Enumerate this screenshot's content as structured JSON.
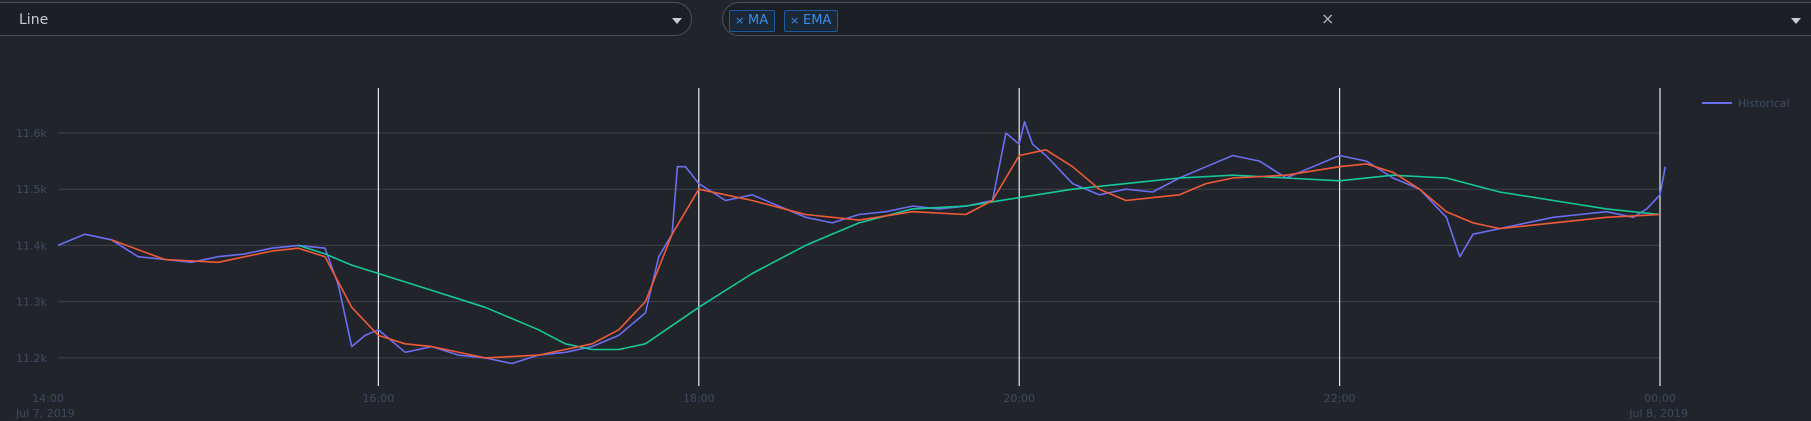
{
  "controls": {
    "chart_type_select": {
      "value": "Line"
    },
    "indicators_select": {
      "chips": [
        "MA",
        "EMA"
      ],
      "remove_glyph": "×",
      "clear_glyph": "×"
    }
  },
  "colors": {
    "historical": "#6b6ef0",
    "ma": "#16c79a",
    "ema": "#f05a38",
    "grid": "#3d424b",
    "axis_text": "#3e4a60"
  },
  "chart_data": {
    "type": "line",
    "title": "",
    "xlabel": "",
    "ylabel": "",
    "x_domain": [
      "2019-07-07T14:00",
      "2019-07-08T00:00"
    ],
    "ylim": [
      11150,
      11680
    ],
    "y_ticks": [
      {
        "value": 11200,
        "label": "11.2k"
      },
      {
        "value": 11300,
        "label": "11.3k"
      },
      {
        "value": 11400,
        "label": "11.4k"
      },
      {
        "value": 11500,
        "label": "11.5k"
      },
      {
        "value": 11600,
        "label": "11.6k"
      }
    ],
    "x_ticks": [
      {
        "time": "14:00",
        "label": "14:00",
        "sub": "Jul 7, 2019"
      },
      {
        "time": "16:00",
        "label": "16:00",
        "sub": ""
      },
      {
        "time": "18:00",
        "label": "18:00",
        "sub": ""
      },
      {
        "time": "20:00",
        "label": "20:00",
        "sub": ""
      },
      {
        "time": "22:00",
        "label": "22:00",
        "sub": ""
      },
      {
        "time": "00:00",
        "label": "00:00",
        "sub": "Jul 8, 2019"
      }
    ],
    "vertical_markers": [
      "16:00",
      "18:00",
      "20:00",
      "22:00",
      "00:00"
    ],
    "grid": true,
    "legend": {
      "position": "top-right",
      "entries": [
        "Historical"
      ]
    },
    "series": [
      {
        "name": "Historical",
        "key": "historical",
        "x": [
          "14:00",
          "14:10",
          "14:20",
          "14:30",
          "14:40",
          "14:50",
          "15:00",
          "15:10",
          "15:20",
          "15:30",
          "15:40",
          "15:45",
          "15:50",
          "15:55",
          "16:00",
          "16:05",
          "16:10",
          "16:20",
          "16:30",
          "16:40",
          "16:50",
          "17:00",
          "17:10",
          "17:20",
          "17:30",
          "17:35",
          "17:40",
          "17:45",
          "17:50",
          "17:52",
          "17:55",
          "18:00",
          "18:10",
          "18:20",
          "18:30",
          "18:40",
          "18:50",
          "19:00",
          "19:10",
          "19:20",
          "19:30",
          "19:40",
          "19:50",
          "19:55",
          "20:00",
          "20:02",
          "20:05",
          "20:10",
          "20:20",
          "20:30",
          "20:40",
          "20:50",
          "21:00",
          "21:10",
          "21:20",
          "21:30",
          "21:40",
          "21:50",
          "22:00",
          "22:10",
          "22:20",
          "22:30",
          "22:40",
          "22:45",
          "22:50",
          "23:00",
          "23:10",
          "23:20",
          "23:30",
          "23:40",
          "23:50",
          "23:55",
          "00:00",
          "00:02"
        ],
        "y": [
          11400,
          11420,
          11410,
          11380,
          11375,
          11370,
          11380,
          11385,
          11395,
          11400,
          11395,
          11330,
          11220,
          11240,
          11250,
          11230,
          11210,
          11220,
          11205,
          11200,
          11190,
          11205,
          11210,
          11220,
          11240,
          11260,
          11280,
          11380,
          11420,
          11540,
          11540,
          11510,
          11480,
          11490,
          11470,
          11450,
          11440,
          11455,
          11460,
          11470,
          11465,
          11470,
          11480,
          11600,
          11580,
          11620,
          11580,
          11560,
          11510,
          11490,
          11500,
          11495,
          11520,
          11540,
          11560,
          11550,
          11520,
          11540,
          11560,
          11550,
          11520,
          11500,
          11450,
          11380,
          11420,
          11430,
          11440,
          11450,
          11455,
          11460,
          11450,
          11465,
          11490,
          11540
        ]
      },
      {
        "name": "",
        "key": "ma",
        "x": [
          "15:30",
          "15:40",
          "15:50",
          "16:00",
          "16:20",
          "16:40",
          "17:00",
          "17:10",
          "17:20",
          "17:30",
          "17:40",
          "18:00",
          "18:20",
          "18:40",
          "19:00",
          "19:20",
          "19:40",
          "20:00",
          "20:20",
          "20:40",
          "21:00",
          "21:20",
          "21:40",
          "22:00",
          "22:20",
          "22:40",
          "23:00",
          "23:20",
          "23:40",
          "24:00"
        ],
        "y": [
          11400,
          11385,
          11365,
          11350,
          11320,
          11290,
          11250,
          11225,
          11215,
          11215,
          11225,
          11290,
          11350,
          11400,
          11440,
          11465,
          11470,
          11485,
          11500,
          11510,
          11520,
          11525,
          11520,
          11515,
          11525,
          11520,
          11495,
          11480,
          11465,
          11455
        ]
      },
      {
        "name": "",
        "key": "ema",
        "x": [
          "14:20",
          "14:40",
          "15:00",
          "15:20",
          "15:30",
          "15:40",
          "15:50",
          "16:00",
          "16:10",
          "16:20",
          "16:40",
          "17:00",
          "17:10",
          "17:20",
          "17:30",
          "17:40",
          "17:50",
          "18:00",
          "18:10",
          "18:20",
          "18:40",
          "19:00",
          "19:20",
          "19:40",
          "19:50",
          "20:00",
          "20:10",
          "20:20",
          "20:30",
          "20:40",
          "20:50",
          "21:00",
          "21:10",
          "21:20",
          "21:40",
          "22:00",
          "22:10",
          "22:20",
          "22:30",
          "22:40",
          "22:50",
          "23:00",
          "23:20",
          "23:40",
          "24:00"
        ],
        "y": [
          11410,
          11375,
          11370,
          11390,
          11395,
          11380,
          11290,
          11240,
          11225,
          11220,
          11200,
          11205,
          11215,
          11225,
          11250,
          11300,
          11420,
          11500,
          11490,
          11480,
          11455,
          11445,
          11460,
          11455,
          11480,
          11560,
          11570,
          11540,
          11500,
          11480,
          11485,
          11490,
          11510,
          11520,
          11525,
          11540,
          11545,
          11530,
          11500,
          11460,
          11440,
          11430,
          11440,
          11450,
          11455
        ]
      }
    ]
  }
}
